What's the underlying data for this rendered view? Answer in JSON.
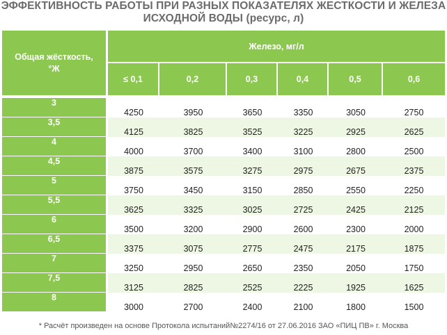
{
  "title": {
    "line1": "ЭФФЕКТИВНОСТЬ РАБОТЫ ПРИ РАЗНЫХ ПОКАЗАТЕЛЯХ ЖЕСТКОСТИ И ЖЕЛЕЗА",
    "line2": "ИСХОДНОЙ ВОДЫ (ресурс, л)"
  },
  "table": {
    "corner_line1": "Общая жёсткость,",
    "corner_line2": "°Ж",
    "iron_header": "Железо, мг/л",
    "columns": [
      "≤ 0,1",
      "0,2",
      "0,3",
      "0,4",
      "0,5",
      "0,6"
    ],
    "rows": [
      {
        "hardness": "3",
        "values": [
          "4250",
          "3950",
          "3650",
          "3350",
          "3050",
          "2750"
        ]
      },
      {
        "hardness": "3,5",
        "values": [
          "4125",
          "3825",
          "3525",
          "3225",
          "2925",
          "2625"
        ]
      },
      {
        "hardness": "4",
        "values": [
          "4000",
          "3700",
          "3400",
          "3100",
          "2800",
          "2500"
        ]
      },
      {
        "hardness": "4,5",
        "values": [
          "3875",
          "3575",
          "3275",
          "2975",
          "2675",
          "2375"
        ]
      },
      {
        "hardness": "5",
        "values": [
          "3750",
          "3450",
          "3150",
          "2850",
          "2550",
          "2250"
        ]
      },
      {
        "hardness": "5,5",
        "values": [
          "3625",
          "3325",
          "3025",
          "2725",
          "2425",
          "2125"
        ]
      },
      {
        "hardness": "6",
        "values": [
          "3500",
          "3200",
          "2900",
          "2600",
          "2300",
          "2000"
        ]
      },
      {
        "hardness": "6,5",
        "values": [
          "3375",
          "3075",
          "2775",
          "2475",
          "2175",
          "1875"
        ]
      },
      {
        "hardness": "7",
        "values": [
          "3250",
          "2950",
          "2650",
          "2350",
          "2050",
          "1750"
        ]
      },
      {
        "hardness": "7,5",
        "values": [
          "3125",
          "2825",
          "2525",
          "2225",
          "1925",
          "1625"
        ]
      },
      {
        "hardness": "8",
        "values": [
          "3000",
          "2700",
          "2400",
          "2100",
          "1800",
          "1500"
        ]
      }
    ]
  },
  "footnote": "* Расчёт произведен на основе Протокола испытаний№2274/16 от 27.06.2016 ЗАО «ПИЦ ПВ» г. Москва",
  "colors": {
    "header_green": "#8cc850",
    "stripe": "#eef6e4",
    "title_gray": "#6b6b6b"
  }
}
